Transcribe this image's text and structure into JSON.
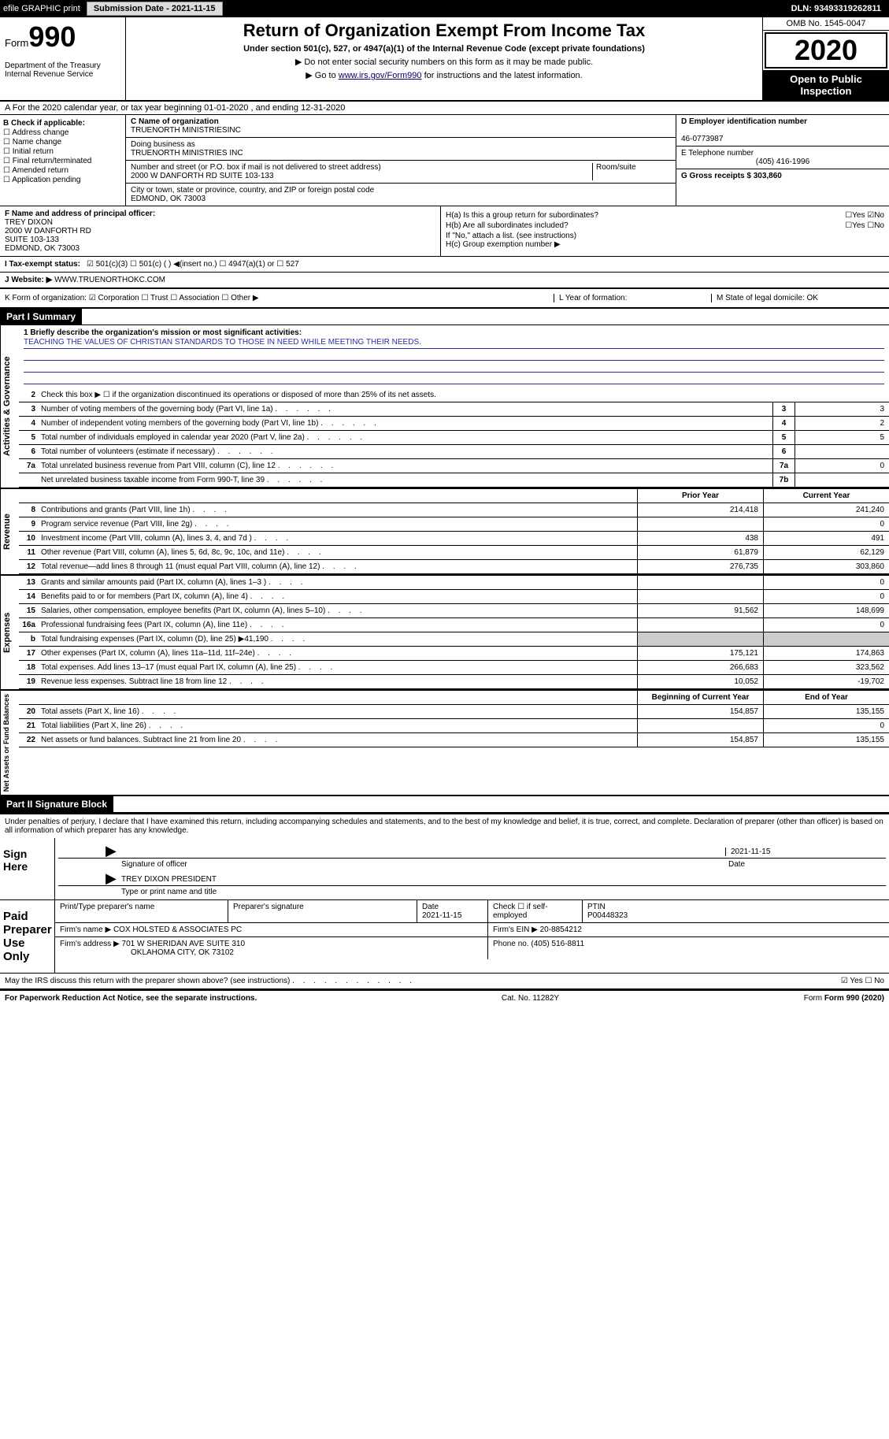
{
  "topbar": {
    "efile": "efile GRAPHIC print",
    "submission": "Submission Date - 2021-11-15",
    "dln": "DLN: 93493319262811"
  },
  "header": {
    "form": "Form",
    "num": "990",
    "dept": "Department of the Treasury Internal Revenue Service",
    "title": "Return of Organization Exempt From Income Tax",
    "subtitle": "Under section 501(c), 527, or 4947(a)(1) of the Internal Revenue Code (except private foundations)",
    "note1": "▶ Do not enter social security numbers on this form as it may be made public.",
    "note2_prefix": "▶ Go to ",
    "note2_link": "www.irs.gov/Form990",
    "note2_suffix": " for instructions and the latest information.",
    "omb": "OMB No. 1545-0047",
    "year": "2020",
    "inspection": "Open to Public Inspection"
  },
  "rowA": {
    "text": "A For the 2020 calendar year, or tax year beginning 01-01-2020    , and ending 12-31-2020"
  },
  "checkB": {
    "label": "B Check if applicable:",
    "items": [
      "☐ Address change",
      "☐ Name change",
      "☐ Initial return",
      "☐ Final return/terminated",
      "☐ Amended return",
      "☐ Application pending"
    ]
  },
  "nameBlock": {
    "c_label": "C Name of organization",
    "c_val": "TRUENORTH MINISTRIESINC",
    "dba_label": "Doing business as",
    "dba_val": "TRUENORTH MINISTRIES INC",
    "addr_label": "Number and street (or P.O. box if mail is not delivered to street address)",
    "room_label": "Room/suite",
    "addr_val": "2000 W DANFORTH RD SUITE 103-133",
    "city_label": "City or town, state or province, country, and ZIP or foreign postal code",
    "city_val": "EDMOND, OK  73003"
  },
  "rightBlock": {
    "d_label": "D Employer identification number",
    "d_val": "46-0773987",
    "e_label": "E Telephone number",
    "e_val": "(405) 416-1996",
    "g_label": "G Gross receipts $ 303,860"
  },
  "rowF": {
    "f_label": "F  Name and address of principal officer:",
    "f_name": "TREY DIXON",
    "f_addr1": "2000 W DANFORTH RD",
    "f_addr2": "SUITE 103-133",
    "f_addr3": "EDMOND, OK  73003",
    "ha": "H(a)  Is this a group return for subordinates?",
    "ha_ans": "☐Yes ☑No",
    "hb": "H(b)  Are all subordinates included?",
    "hb_ans": "☐Yes ☐No",
    "hb_note": "If \"No,\" attach a list. (see instructions)",
    "hc": "H(c)  Group exemption number ▶"
  },
  "rowI": {
    "label": "I  Tax-exempt status:",
    "opts": "☑ 501(c)(3)    ☐ 501(c) (  ) ◀(insert no.)    ☐ 4947(a)(1) or   ☐ 527"
  },
  "rowJ": {
    "label": "J  Website: ▶",
    "val": "WWW.TRUENORTHOKC.COM"
  },
  "rowK": {
    "k": "K Form of organization:  ☑ Corporation  ☐ Trust  ☐ Association  ☐ Other ▶",
    "l": "L Year of formation:",
    "m": "M State of legal domicile: OK"
  },
  "part1": {
    "header": "Part I      Summary",
    "line1_label": "1  Briefly describe the organization's mission or most significant activities:",
    "line1_val": "TEACHING THE VALUES OF CHRISTIAN STANDARDS TO THOSE IN NEED WHILE MEETING THEIR NEEDS.",
    "line2": "Check this box ▶ ☐  if the organization discontinued its operations or disposed of more than 25% of its net assets.",
    "gov_lines": [
      {
        "n": "3",
        "t": "Number of voting members of the governing body (Part VI, line 1a)",
        "box": "3",
        "v": "3"
      },
      {
        "n": "4",
        "t": "Number of independent voting members of the governing body (Part VI, line 1b)",
        "box": "4",
        "v": "2"
      },
      {
        "n": "5",
        "t": "Total number of individuals employed in calendar year 2020 (Part V, line 2a)",
        "box": "5",
        "v": "5"
      },
      {
        "n": "6",
        "t": "Total number of volunteers (estimate if necessary)",
        "box": "6",
        "v": ""
      },
      {
        "n": "7a",
        "t": "Total unrelated business revenue from Part VIII, column (C), line 12",
        "box": "7a",
        "v": "0"
      },
      {
        "n": "",
        "t": "Net unrelated business taxable income from Form 990-T, line 39",
        "box": "7b",
        "v": ""
      }
    ],
    "col_py": "Prior Year",
    "col_cy": "Current Year",
    "rev_lines": [
      {
        "n": "8",
        "t": "Contributions and grants (Part VIII, line 1h)",
        "py": "214,418",
        "cy": "241,240"
      },
      {
        "n": "9",
        "t": "Program service revenue (Part VIII, line 2g)",
        "py": "",
        "cy": "0"
      },
      {
        "n": "10",
        "t": "Investment income (Part VIII, column (A), lines 3, 4, and 7d )",
        "py": "438",
        "cy": "491"
      },
      {
        "n": "11",
        "t": "Other revenue (Part VIII, column (A), lines 5, 6d, 8c, 9c, 10c, and 11e)",
        "py": "61,879",
        "cy": "62,129"
      },
      {
        "n": "12",
        "t": "Total revenue—add lines 8 through 11 (must equal Part VIII, column (A), line 12)",
        "py": "276,735",
        "cy": "303,860"
      }
    ],
    "exp_lines": [
      {
        "n": "13",
        "t": "Grants and similar amounts paid (Part IX, column (A), lines 1–3 )",
        "py": "",
        "cy": "0"
      },
      {
        "n": "14",
        "t": "Benefits paid to or for members (Part IX, column (A), line 4)",
        "py": "",
        "cy": "0"
      },
      {
        "n": "15",
        "t": "Salaries, other compensation, employee benefits (Part IX, column (A), lines 5–10)",
        "py": "91,562",
        "cy": "148,699"
      },
      {
        "n": "16a",
        "t": "Professional fundraising fees (Part IX, column (A), line 11e)",
        "py": "",
        "cy": "0"
      },
      {
        "n": "b",
        "t": "Total fundraising expenses (Part IX, column (D), line 25) ▶41,190",
        "py": "GREY",
        "cy": "GREY"
      },
      {
        "n": "17",
        "t": "Other expenses (Part IX, column (A), lines 11a–11d, 11f–24e)",
        "py": "175,121",
        "cy": "174,863"
      },
      {
        "n": "18",
        "t": "Total expenses. Add lines 13–17 (must equal Part IX, column (A), line 25)",
        "py": "266,683",
        "cy": "323,562"
      },
      {
        "n": "19",
        "t": "Revenue less expenses. Subtract line 18 from line 12",
        "py": "10,052",
        "cy": "-19,702"
      }
    ],
    "col_boc": "Beginning of Current Year",
    "col_eoy": "End of Year",
    "net_lines": [
      {
        "n": "20",
        "t": "Total assets (Part X, line 16)",
        "py": "154,857",
        "cy": "135,155"
      },
      {
        "n": "21",
        "t": "Total liabilities (Part X, line 26)",
        "py": "",
        "cy": "0"
      },
      {
        "n": "22",
        "t": "Net assets or fund balances. Subtract line 21 from line 20",
        "py": "154,857",
        "cy": "135,155"
      }
    ]
  },
  "part2": {
    "header": "Part II     Signature Block",
    "decl": "Under penalties of perjury, I declare that I have examined this return, including accompanying schedules and statements, and to the best of my knowledge and belief, it is true, correct, and complete. Declaration of preparer (other than officer) is based on all information of which preparer has any knowledge.",
    "sign_here": "Sign Here",
    "sig_officer": "Signature of officer",
    "date": "Date",
    "date_val": "2021-11-15",
    "name_title": "TREY DIXON  PRESIDENT",
    "type_name": "Type or print name and title",
    "paid_prep": "Paid Preparer Use Only",
    "prep_name_label": "Print/Type preparer's name",
    "prep_sig_label": "Preparer's signature",
    "prep_date_label": "Date",
    "prep_date": "2021-11-15",
    "check_self": "Check ☐ if self-employed",
    "ptin_label": "PTIN",
    "ptin": "P00448323",
    "firm_name_label": "Firm's name    ▶",
    "firm_name": "COX HOLSTED & ASSOCIATES PC",
    "firm_ein_label": "Firm's EIN ▶",
    "firm_ein": "20-8854212",
    "firm_addr_label": "Firm's address ▶",
    "firm_addr": "701 W SHERIDAN AVE SUITE 310",
    "firm_city": "OKLAHOMA CITY, OK  73102",
    "phone_label": "Phone no.",
    "phone": "(405) 516-8811",
    "may_irs": "May the IRS discuss this return with the preparer shown above? (see instructions)",
    "may_ans": "☑ Yes  ☐ No"
  },
  "footer": {
    "left": "For Paperwork Reduction Act Notice, see the separate instructions.",
    "mid": "Cat. No. 11282Y",
    "right": "Form 990 (2020)"
  },
  "side_labels": {
    "gov": "Activities & Governance",
    "rev": "Revenue",
    "exp": "Expenses",
    "net": "Net Assets or Fund Balances"
  }
}
